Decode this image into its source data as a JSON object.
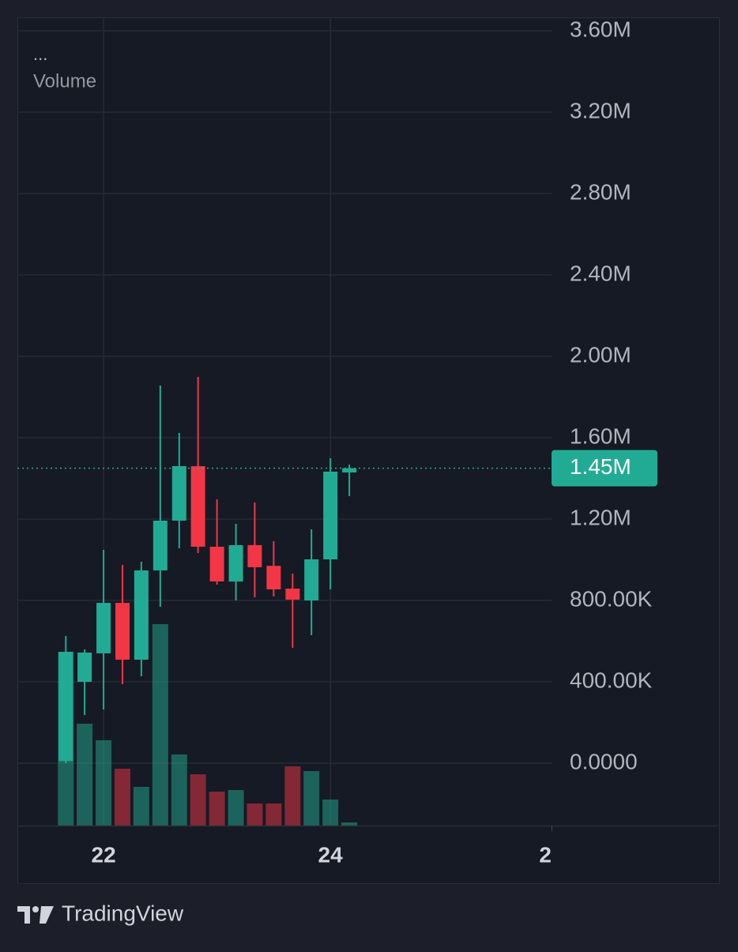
{
  "chart_data": {
    "type": "candlestick",
    "status_line": "...",
    "x": [
      21.667,
      21.833,
      22,
      22.167,
      22.333,
      22.5,
      22.667,
      22.833,
      23,
      23.167,
      23.333,
      23.5,
      23.667,
      23.833,
      24,
      24.167
    ],
    "open": [
      10000,
      400000,
      540000,
      788000,
      508700,
      947600,
      1192200,
      1460000,
      1064000,
      893000,
      1072000,
      970000,
      858000,
      800000,
      1001900,
      1429000
    ],
    "high": [
      625000,
      559000,
      1048500,
      974800,
      990300,
      1856300,
      1623300,
      1899000,
      1297100,
      1176700,
      1281600,
      1091300,
      932000,
      1149500,
      1499000,
      1468000
    ],
    "low": [
      0,
      237000,
      264000,
      388300,
      427200,
      768900,
      1056300,
      1033000,
      877700,
      800000,
      815500,
      819400,
      567000,
      629100,
      854400,
      1312600
    ],
    "close": [
      547600,
      543700,
      788000,
      508700,
      947600,
      1192200,
      1460200,
      1064100,
      893200,
      1071800,
      963100,
      854400,
      803900,
      1001900,
      1433000,
      1450000
    ],
    "up_color": "#22ab94",
    "down_color": "#f23645",
    "volume": {
      "name": "Volume",
      "values": [
        220,
        129,
        108,
        72,
        49,
        255,
        90,
        65,
        43,
        45,
        28,
        28,
        75,
        69,
        33,
        4
      ],
      "ylim": [
        0,
        300
      ]
    },
    "xlim": [
      21.24,
      25.95
    ],
    "xticks": [
      22,
      24,
      {
        "value": 26,
        "label": "2"
      }
    ],
    "ylim": [
      -306800,
      3666000
    ],
    "yticks": [
      {
        "value": 0,
        "label": "0.0000"
      },
      {
        "value": 400000,
        "label": "400.00K"
      },
      {
        "value": 800000,
        "label": "800.00K"
      },
      {
        "value": 1200000,
        "label": "1.20M"
      },
      {
        "value": 1600000,
        "label": "1.60M"
      },
      {
        "value": 2000000,
        "label": "2.00M"
      },
      {
        "value": 2400000,
        "label": "2.40M"
      },
      {
        "value": 2800000,
        "label": "2.80M"
      },
      {
        "value": 3200000,
        "label": "3.20M"
      },
      {
        "value": 3600000,
        "label": "3.60M"
      }
    ],
    "last_price": {
      "value": 1450000,
      "label": "1.45M"
    },
    "grid": true,
    "brand": "TradingView"
  }
}
